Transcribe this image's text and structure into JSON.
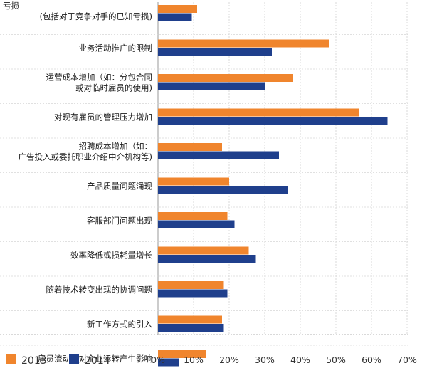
{
  "chart_data": {
    "type": "bar",
    "orientation": "horizontal",
    "categories": [
      [
        "亏损",
        "(包括对于竞争对手的已知亏损)"
      ],
      [
        "业务活动推广的限制"
      ],
      [
        "运营成本增加（如：分包合同",
        "或对临时雇员的使用)"
      ],
      [
        "对现有雇员的管理压力增加"
      ],
      [
        "招聘成本增加（如：",
        "广告投入或委托职业介绍中介机构等)"
      ],
      [
        "产品质量问题涌现"
      ],
      [
        "客服部门问题出现"
      ],
      [
        "效率降低或损耗量增长"
      ],
      [
        "随着技术转变出现的协调问题"
      ],
      [
        "新工作方式的引入"
      ],
      [
        "雇员流动未对企业运转产生影响"
      ]
    ],
    "series": [
      {
        "name": "2013",
        "color": "#f0852d",
        "values": [
          11,
          48,
          38,
          56.5,
          18,
          20,
          19.5,
          25.5,
          18.5,
          18,
          13.5
        ]
      },
      {
        "name": "2014",
        "color": "#1f3f8c",
        "values": [
          9.5,
          32,
          30,
          64.5,
          34,
          36.5,
          21.5,
          27.5,
          19.5,
          18.5,
          6
        ]
      }
    ],
    "xlim": [
      0,
      70
    ],
    "xticks": [
      0,
      10,
      20,
      30,
      40,
      50,
      60,
      70
    ],
    "tick_suffix": "%",
    "grid": true,
    "legend_position": "bottom-left"
  }
}
